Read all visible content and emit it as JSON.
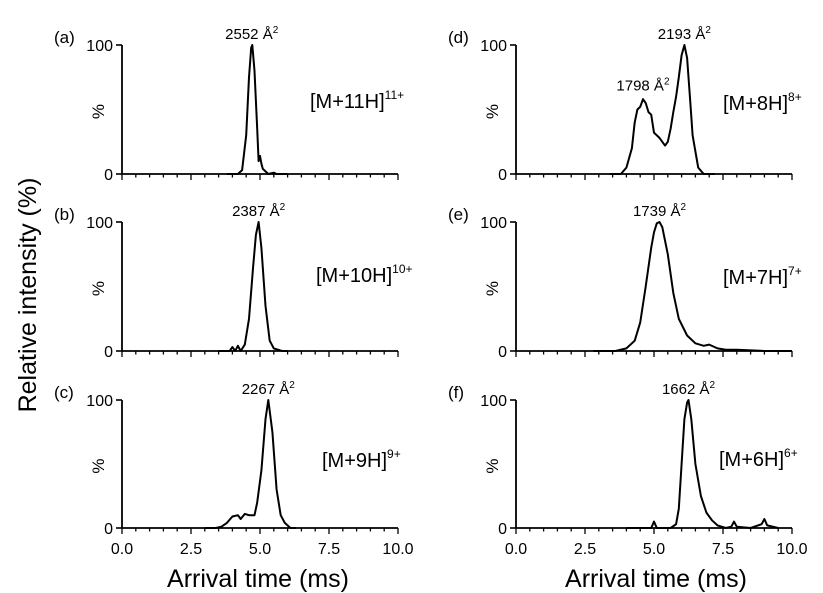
{
  "figure": {
    "ylabel": "Relative intensity (%)",
    "xlabel": "Arrival time (ms)"
  },
  "chart_data": [
    {
      "type": "line",
      "panel_label": "(a)",
      "ion_label": {
        "base": "[M+11H]",
        "charge": "11+"
      },
      "peak_labels": [
        {
          "value": "2552",
          "unit": "Å",
          "unit_sup": "2",
          "x": 4.7,
          "y": 100
        }
      ],
      "ylim": [
        0,
        100
      ],
      "yticks": [
        "0",
        "100"
      ],
      "yaxis_label": "%",
      "xlim": [
        0,
        10
      ],
      "x": [
        3.8,
        4.2,
        4.35,
        4.5,
        4.6,
        4.68,
        4.72,
        4.8,
        4.9,
        4.95,
        5.0,
        5.05,
        5.1,
        5.2,
        5.3,
        5.5,
        5.6,
        6.0
      ],
      "y": [
        0,
        0,
        3,
        30,
        75,
        98,
        100,
        80,
        35,
        10,
        14,
        8,
        4,
        2,
        0,
        1,
        0,
        0
      ]
    },
    {
      "type": "line",
      "panel_label": "(b)",
      "ion_label": {
        "base": "[M+10H]",
        "charge": "10+"
      },
      "peak_labels": [
        {
          "value": "2387",
          "unit": "Å",
          "unit_sup": "2",
          "x": 4.95,
          "y": 100
        }
      ],
      "ylim": [
        0,
        100
      ],
      "yticks": [
        "0",
        "100"
      ],
      "yaxis_label": "%",
      "xlim": [
        0,
        10
      ],
      "x": [
        3.5,
        3.9,
        4.0,
        4.1,
        4.2,
        4.3,
        4.45,
        4.6,
        4.75,
        4.85,
        4.95,
        5.05,
        5.2,
        5.35,
        5.5,
        5.8,
        6.0
      ],
      "y": [
        0,
        0,
        3,
        0,
        4,
        0,
        5,
        25,
        65,
        90,
        100,
        80,
        35,
        8,
        2,
        0,
        0
      ]
    },
    {
      "type": "line",
      "panel_label": "(c)",
      "ion_label": {
        "base": "[M+9H]",
        "charge": "9+"
      },
      "peak_labels": [
        {
          "value": "2267",
          "unit": "Å",
          "unit_sup": "2",
          "x": 5.3,
          "y": 100
        }
      ],
      "ylim": [
        0,
        100
      ],
      "yticks": [
        "0",
        "100"
      ],
      "yaxis_label": "%",
      "xlim": [
        0,
        10
      ],
      "x": [
        3.0,
        3.4,
        3.6,
        3.8,
        4.0,
        4.2,
        4.3,
        4.45,
        4.6,
        4.8,
        4.9,
        5.05,
        5.2,
        5.3,
        5.45,
        5.6,
        5.75,
        5.9,
        6.1,
        6.3
      ],
      "y": [
        0,
        0,
        1,
        4,
        9,
        10,
        7,
        11,
        10,
        10,
        20,
        45,
        85,
        100,
        75,
        30,
        10,
        4,
        0,
        0
      ]
    },
    {
      "type": "line",
      "panel_label": "(d)",
      "ion_label": {
        "base": "[M+8H]",
        "charge": "8+"
      },
      "peak_labels": [
        {
          "value": "1798",
          "unit": "Å",
          "unit_sup": "2",
          "x": 4.6,
          "y": 60
        },
        {
          "value": "2193",
          "unit": "Å",
          "unit_sup": "2",
          "x": 6.1,
          "y": 100
        }
      ],
      "ylim": [
        0,
        100
      ],
      "yticks": [
        "0",
        "100"
      ],
      "yaxis_label": "%",
      "xlim": [
        0,
        10
      ],
      "x": [
        3.4,
        3.8,
        4.0,
        4.2,
        4.3,
        4.4,
        4.5,
        4.6,
        4.7,
        4.8,
        4.9,
        5.0,
        5.2,
        5.4,
        5.5,
        5.6,
        5.7,
        5.8,
        5.9,
        6.0,
        6.1,
        6.2,
        6.3,
        6.4,
        6.6,
        6.8,
        7.2
      ],
      "y": [
        0,
        0,
        5,
        20,
        40,
        50,
        52,
        58,
        55,
        48,
        46,
        32,
        28,
        22,
        25,
        35,
        48,
        60,
        75,
        92,
        100,
        90,
        60,
        30,
        5,
        0,
        0
      ]
    },
    {
      "type": "line",
      "panel_label": "(e)",
      "ion_label": {
        "base": "[M+7H]",
        "charge": "7+"
      },
      "peak_labels": [
        {
          "value": "1739",
          "unit": "Å",
          "unit_sup": "2",
          "x": 5.2,
          "y": 100
        }
      ],
      "ylim": [
        0,
        100
      ],
      "yticks": [
        "0",
        "100"
      ],
      "yaxis_label": "%",
      "xlim": [
        0,
        10
      ],
      "x": [
        2.8,
        3.6,
        4.0,
        4.3,
        4.5,
        4.7,
        4.9,
        5.0,
        5.1,
        5.2,
        5.3,
        5.5,
        5.7,
        5.9,
        6.2,
        6.5,
        6.8,
        7.0,
        7.3,
        7.6,
        8.0,
        9.0,
        10.0
      ],
      "y": [
        0,
        0,
        2,
        8,
        22,
        50,
        80,
        92,
        99,
        100,
        96,
        75,
        45,
        25,
        12,
        6,
        4,
        5,
        2,
        1,
        1,
        0,
        0
      ]
    },
    {
      "type": "line",
      "panel_label": "(f)",
      "ion_label": {
        "base": "[M+6H]",
        "charge": "6+"
      },
      "peak_labels": [
        {
          "value": "1662",
          "unit": "Å",
          "unit_sup": "2",
          "x": 6.25,
          "y": 100
        }
      ],
      "ylim": [
        0,
        100
      ],
      "yticks": [
        "0",
        "100"
      ],
      "yaxis_label": "%",
      "xlim": [
        0,
        10
      ],
      "x": [
        4.0,
        4.9,
        5.0,
        5.1,
        5.6,
        5.8,
        5.9,
        6.0,
        6.1,
        6.2,
        6.25,
        6.35,
        6.5,
        6.7,
        6.9,
        7.1,
        7.3,
        7.6,
        7.8,
        7.9,
        8.0,
        8.5,
        8.9,
        9.0,
        9.1,
        9.5
      ],
      "y": [
        0,
        0,
        5,
        0,
        0,
        3,
        15,
        50,
        85,
        98,
        100,
        85,
        50,
        25,
        12,
        6,
        2,
        0,
        1,
        5,
        1,
        0,
        3,
        7,
        2,
        0
      ],
      "xticks": [
        "0.0",
        "2.5",
        "5.0",
        "7.5",
        "10.0"
      ]
    }
  ],
  "xticks_bottom": [
    "0.0",
    "2.5",
    "5.0",
    "7.5",
    "10.0"
  ]
}
